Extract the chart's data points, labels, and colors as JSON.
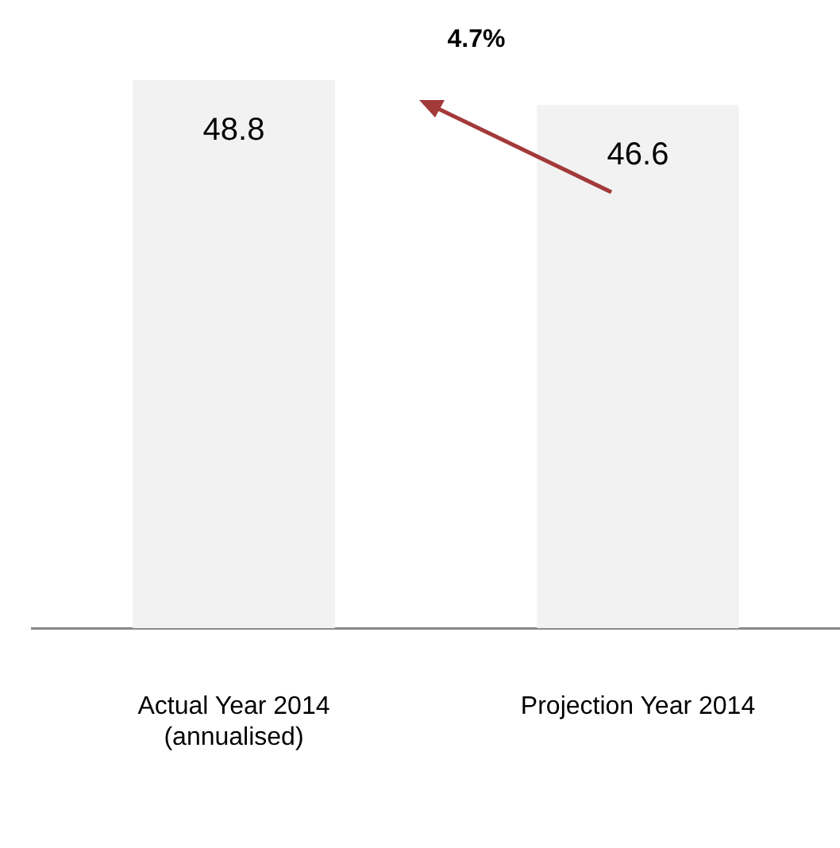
{
  "chart_data": {
    "type": "bar",
    "categories": [
      "Actual Year 2014\n(annualised)",
      "Projection Year 2014"
    ],
    "values": [
      48.8,
      46.6
    ],
    "color": "#f2f2f2",
    "data_labels": true,
    "grid": false,
    "legend": false,
    "annotations": [
      "4.7%"
    ]
  }
}
